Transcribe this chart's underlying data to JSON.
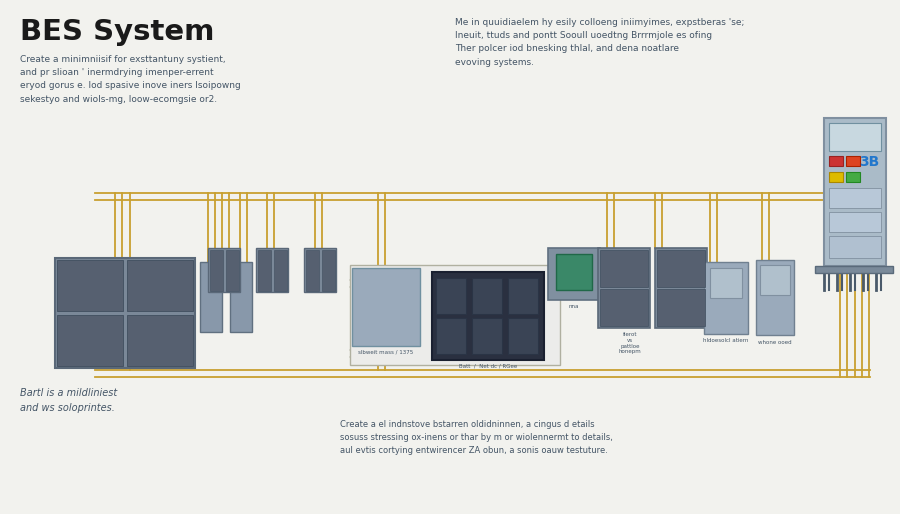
{
  "title": "BES System",
  "subtitle_left": "Create a minimniisif for exsttantuny systient,\nand pr slioan ' inermdrying imenper-errent\neryod gorus e. lod spasive inove iners lsoipowng\nsekestyo and wiols-mg, loow-ecomgsie or2.",
  "text_top_right": "Me in quuidiaelem hy esily colloeng iniimyimes, expstberas 'se;\nIneuit, ttuds and pontt Sooull uoedtng Brrrmjole es ofing\nTher polcer iod bnesking thlal, and dena noatlare\nevoving systems.",
  "text_bottom_left": "Bartl is a mildliniest\nand ws soloprintes.",
  "text_bottom_center": "Create a el indnstove bstarren oldidninnen, a cingus d etails\nsosuss stressing ox-inens or thar by m or wiolennermt to details,\naul evtis cortying entwirencer ZA obun, a sonis oauw testuture.",
  "bg_color": "#f2f2ee",
  "line_color_gold": "#c8a030",
  "comp_fill": "#8a9aaa",
  "comp_stroke": "#6a7a8a",
  "panel_dark": "#4a5a6a",
  "text_color_dark": "#1a1a1a",
  "text_color_mid": "#445566",
  "white_line": "#d8d8cc"
}
